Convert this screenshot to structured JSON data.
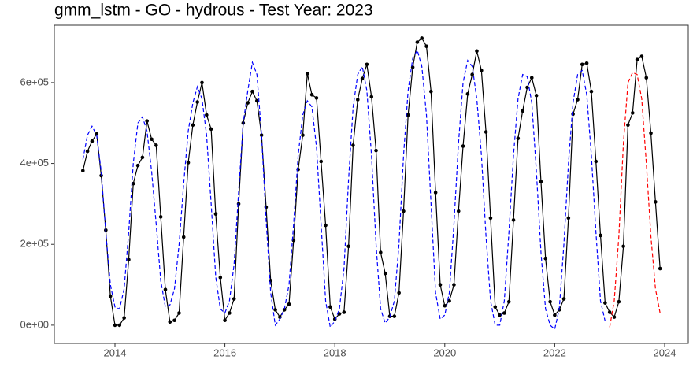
{
  "chart_data": {
    "type": "line",
    "title": "gmm_lstm - GO - hydrous - Test Year: 2023",
    "x": [
      2013.417,
      2013.5,
      2013.583,
      2013.667,
      2013.75,
      2013.833,
      2013.917,
      2014.0,
      2014.083,
      2014.167,
      2014.25,
      2014.333,
      2014.417,
      2014.5,
      2014.583,
      2014.667,
      2014.75,
      2014.833,
      2014.917,
      2015.0,
      2015.083,
      2015.167,
      2015.25,
      2015.333,
      2015.417,
      2015.5,
      2015.583,
      2015.667,
      2015.75,
      2015.833,
      2015.917,
      2016.0,
      2016.083,
      2016.167,
      2016.25,
      2016.333,
      2016.417,
      2016.5,
      2016.583,
      2016.667,
      2016.75,
      2016.833,
      2016.917,
      2017.0,
      2017.083,
      2017.167,
      2017.25,
      2017.333,
      2017.417,
      2017.5,
      2017.583,
      2017.667,
      2017.75,
      2017.833,
      2017.917,
      2018.0,
      2018.083,
      2018.167,
      2018.25,
      2018.333,
      2018.417,
      2018.5,
      2018.583,
      2018.667,
      2018.75,
      2018.833,
      2018.917,
      2019.0,
      2019.083,
      2019.167,
      2019.25,
      2019.333,
      2019.417,
      2019.5,
      2019.583,
      2019.667,
      2019.75,
      2019.833,
      2019.917,
      2020.0,
      2020.083,
      2020.167,
      2020.25,
      2020.333,
      2020.417,
      2020.5,
      2020.583,
      2020.667,
      2020.75,
      2020.833,
      2020.917,
      2021.0,
      2021.083,
      2021.167,
      2021.25,
      2021.333,
      2021.417,
      2021.5,
      2021.583,
      2021.667,
      2021.75,
      2021.833,
      2021.917,
      2022.0,
      2022.083,
      2022.167,
      2022.25,
      2022.333,
      2022.417,
      2022.5,
      2022.583,
      2022.667,
      2022.75,
      2022.833,
      2022.917,
      2023.0,
      2023.083,
      2023.167,
      2023.25,
      2023.333,
      2023.417,
      2023.5,
      2023.583,
      2023.667,
      2023.75,
      2023.833,
      2023.917
    ],
    "series": [
      {
        "color": "#000000",
        "markers": true,
        "dashed": false,
        "values": [
          382000,
          430000,
          455000,
          473000,
          370000,
          235000,
          72000,
          0,
          0,
          18000,
          162000,
          350000,
          395000,
          415000,
          505000,
          460000,
          445000,
          268000,
          88000,
          8000,
          12000,
          30000,
          218000,
          402000,
          495000,
          552000,
          600000,
          520000,
          485000,
          275000,
          118000,
          12000,
          30000,
          65000,
          300000,
          500000,
          550000,
          578000,
          555000,
          470000,
          292000,
          110000,
          38000,
          20000,
          38000,
          52000,
          210000,
          385000,
          470000,
          622000,
          570000,
          562000,
          405000,
          247000,
          45000,
          15000,
          28000,
          32000,
          195000,
          445000,
          558000,
          610000,
          645000,
          565000,
          432000,
          180000,
          128000,
          22000,
          22000,
          80000,
          282000,
          520000,
          638000,
          700000,
          710000,
          690000,
          578000,
          328000,
          100000,
          48000,
          60000,
          100000,
          282000,
          443000,
          572000,
          620000,
          678000,
          630000,
          478000,
          265000,
          45000,
          25000,
          30000,
          58000,
          260000,
          462000,
          530000,
          588000,
          612000,
          568000,
          355000,
          165000,
          58000,
          25000,
          38000,
          65000,
          265000,
          522000,
          558000,
          645000,
          648000,
          578000,
          405000,
          222000,
          55000,
          32000,
          20000,
          58000,
          195000,
          495000,
          525000,
          657000,
          665000,
          612000,
          475000,
          305000,
          140000
        ]
      },
      {
        "color": "#0000ff",
        "markers": false,
        "dashed": true,
        "values": [
          410000,
          470000,
          492000,
          470000,
          380000,
          230000,
          100000,
          45000,
          40000,
          90000,
          230000,
          400000,
          500000,
          515000,
          480000,
          380000,
          250000,
          110000,
          45000,
          50000,
          90000,
          200000,
          350000,
          480000,
          550000,
          590000,
          560000,
          470000,
          300000,
          120000,
          40000,
          30000,
          60000,
          150000,
          330000,
          500000,
          580000,
          650000,
          620000,
          470000,
          260000,
          80000,
          0,
          15000,
          40000,
          100000,
          250000,
          420000,
          520000,
          555000,
          540000,
          440000,
          250000,
          60000,
          -5000,
          10000,
          40000,
          140000,
          360000,
          540000,
          620000,
          640000,
          580000,
          420000,
          200000,
          40000,
          5000,
          20000,
          60000,
          200000,
          420000,
          580000,
          660000,
          680000,
          640000,
          520000,
          300000,
          80000,
          15000,
          25000,
          80000,
          250000,
          450000,
          600000,
          655000,
          640000,
          560000,
          420000,
          220000,
          60000,
          0,
          0,
          60000,
          230000,
          420000,
          560000,
          620000,
          615000,
          550000,
          380000,
          180000,
          40000,
          0,
          -10000,
          40000,
          200000,
          400000,
          550000,
          620000,
          630000,
          570000,
          420000,
          230000,
          60000,
          10000,
          null,
          null,
          null,
          null,
          null,
          null,
          null,
          null,
          null,
          null,
          null,
          null
        ]
      },
      {
        "color": "#ff0000",
        "markers": false,
        "dashed": true,
        "values": [
          null,
          null,
          null,
          null,
          null,
          null,
          null,
          null,
          null,
          null,
          null,
          null,
          null,
          null,
          null,
          null,
          null,
          null,
          null,
          null,
          null,
          null,
          null,
          null,
          null,
          null,
          null,
          null,
          null,
          null,
          null,
          null,
          null,
          null,
          null,
          null,
          null,
          null,
          null,
          null,
          null,
          null,
          null,
          null,
          null,
          null,
          null,
          null,
          null,
          null,
          null,
          null,
          null,
          null,
          null,
          null,
          null,
          null,
          null,
          null,
          null,
          null,
          null,
          null,
          null,
          null,
          null,
          null,
          null,
          null,
          null,
          null,
          null,
          null,
          null,
          null,
          null,
          null,
          null,
          null,
          null,
          null,
          null,
          null,
          null,
          null,
          null,
          null,
          null,
          null,
          null,
          null,
          null,
          null,
          null,
          null,
          null,
          null,
          null,
          null,
          null,
          null,
          null,
          null,
          null,
          null,
          null,
          null,
          null,
          null,
          null,
          null,
          null,
          null,
          null,
          -5000,
          60000,
          220000,
          450000,
          600000,
          625000,
          620000,
          560000,
          400000,
          220000,
          90000,
          30000
        ]
      }
    ],
    "xlim": [
      2012.897,
      2024.43
    ],
    "xticks": [
      2014,
      2016,
      2018,
      2020,
      2022,
      2024
    ],
    "ylim": [
      -45000,
      742000
    ],
    "yticks": [
      {
        "value": 0,
        "label": "0e+00"
      },
      {
        "value": 200000,
        "label": "2e+05"
      },
      {
        "value": 400000,
        "label": "4e+05"
      },
      {
        "value": 600000,
        "label": "6e+05"
      }
    ],
    "grid": false
  }
}
